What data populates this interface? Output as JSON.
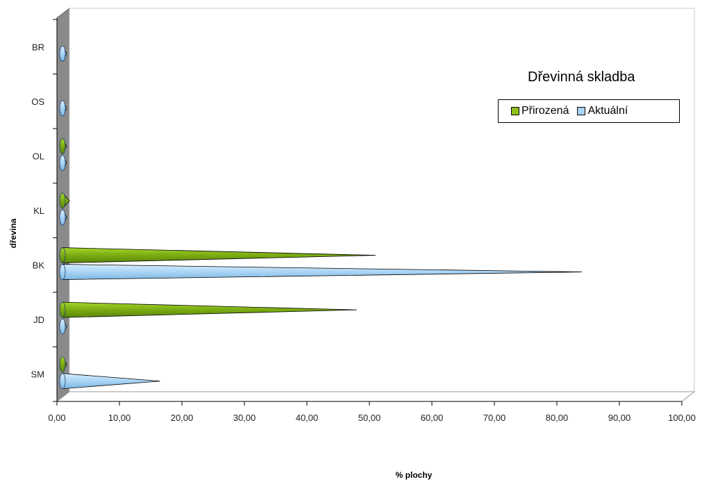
{
  "chart_data": {
    "type": "bar",
    "orientation": "horizontal",
    "title": "Dřevinná skladba",
    "xlabel": "% plochy",
    "ylabel": "dřevina",
    "categories": [
      "SM",
      "JD",
      "BK",
      "KL",
      "OL",
      "OS",
      "BR"
    ],
    "xlim": [
      0,
      100
    ],
    "xticks": [
      "0,00",
      "10,00",
      "20,00",
      "30,00",
      "40,00",
      "50,00",
      "60,00",
      "70,00",
      "80,00",
      "90,00",
      "100,00"
    ],
    "series": [
      {
        "name": "Přirozená",
        "color": "#8fbf1a",
        "values": [
          0.5,
          48,
          51,
          2,
          0.5,
          0,
          0
        ]
      },
      {
        "name": "Aktuální",
        "color": "#a9d4f5",
        "values": [
          16.5,
          0.3,
          84,
          0.3,
          0.3,
          0.3,
          0.3
        ]
      }
    ],
    "grid": false,
    "legend": "right",
    "style": "3d-cone"
  }
}
